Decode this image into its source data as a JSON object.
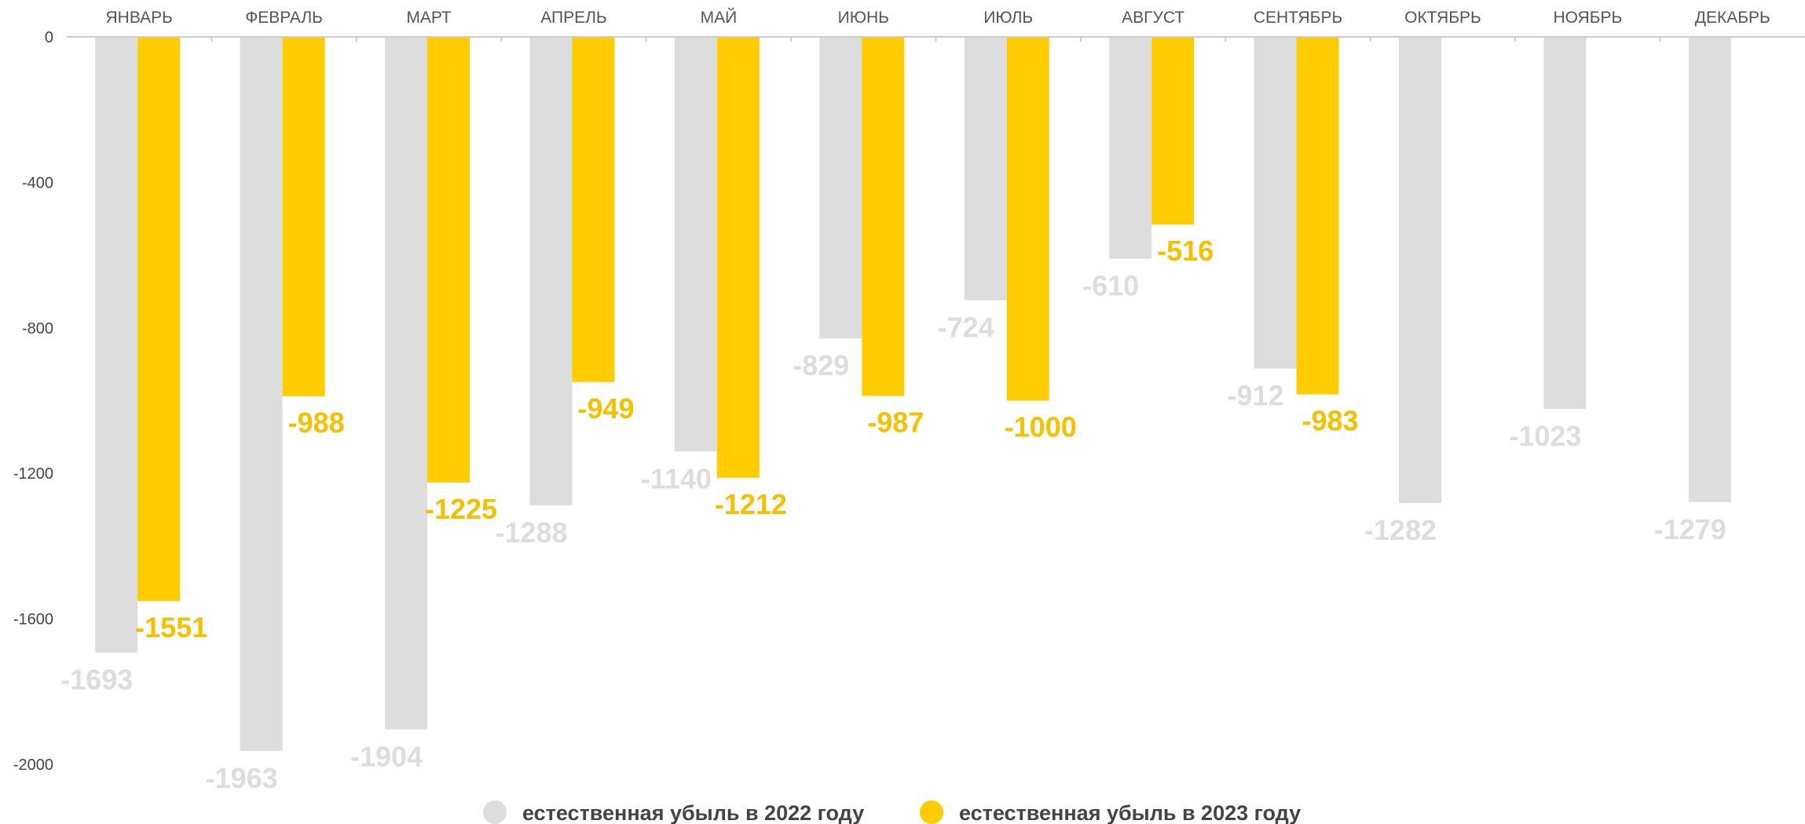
{
  "chart_data": {
    "type": "bar",
    "categories": [
      "ЯНВАРЬ",
      "ФЕВРАЛЬ",
      "МАРТ",
      "АПРЕЛЬ",
      "МАЙ",
      "ИЮНЬ",
      "ИЮЛЬ",
      "АВГУСТ",
      "СЕНТЯБРЬ",
      "ОКТЯБРЬ",
      "НОЯБРЬ",
      "ДЕКАБРЬ"
    ],
    "series": [
      {
        "name": "естественная убыль в 2022 году",
        "color": "#dddddd",
        "label_color": "#dddddd",
        "values": [
          -1693,
          -1963,
          -1904,
          -1288,
          -1140,
          -829,
          -724,
          -610,
          -912,
          -1282,
          -1023,
          -1279
        ]
      },
      {
        "name": "естественная убыль в 2023 году",
        "color": "#ffcc00",
        "label_color": "#f5c000",
        "values": [
          -1551,
          -988,
          -1225,
          -949,
          -1212,
          -987,
          -1000,
          -516,
          -983,
          null,
          null,
          null
        ]
      }
    ],
    "ylim": [
      -2000,
      0
    ],
    "yticks": [
      0,
      -400,
      -800,
      -1200,
      -1600,
      -2000
    ],
    "xaxis_position": "top",
    "legend_position": "bottom-center",
    "grid": false
  }
}
